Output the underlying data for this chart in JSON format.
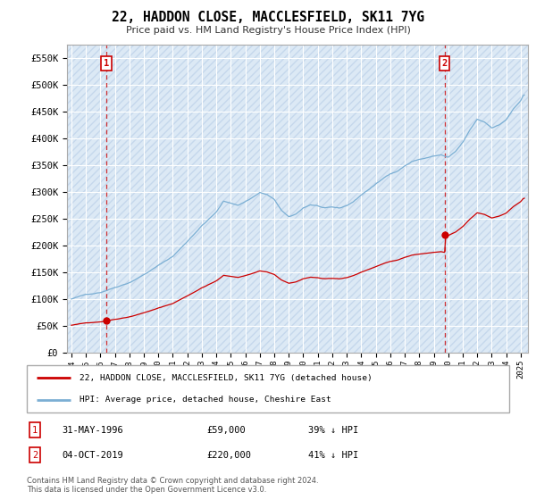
{
  "title": "22, HADDON CLOSE, MACCLESFIELD, SK11 7YG",
  "subtitle": "Price paid vs. HM Land Registry's House Price Index (HPI)",
  "hpi_color": "#7bafd4",
  "property_color": "#cc0000",
  "property_sale_years": [
    1996.42,
    2019.75
  ],
  "property_sale_values": [
    59000,
    220000
  ],
  "label1": "22, HADDON CLOSE, MACCLESFIELD, SK11 7YG (detached house)",
  "label2": "HPI: Average price, detached house, Cheshire East",
  "marker1_date": "31-MAY-1996",
  "marker1_price": "£59,000",
  "marker1_hpi": "39% ↓ HPI",
  "marker2_date": "04-OCT-2019",
  "marker2_price": "£220,000",
  "marker2_hpi": "41% ↓ HPI",
  "footer": "Contains HM Land Registry data © Crown copyright and database right 2024.\nThis data is licensed under the Open Government Licence v3.0.",
  "ylim": [
    0,
    575000
  ],
  "yticks": [
    0,
    50000,
    100000,
    150000,
    200000,
    250000,
    300000,
    350000,
    400000,
    450000,
    500000,
    550000
  ],
  "xlim_start": 1993.7,
  "xlim_end": 2025.5,
  "bg_color": "#dce9f5",
  "hatch_color": "#c5d8ec"
}
